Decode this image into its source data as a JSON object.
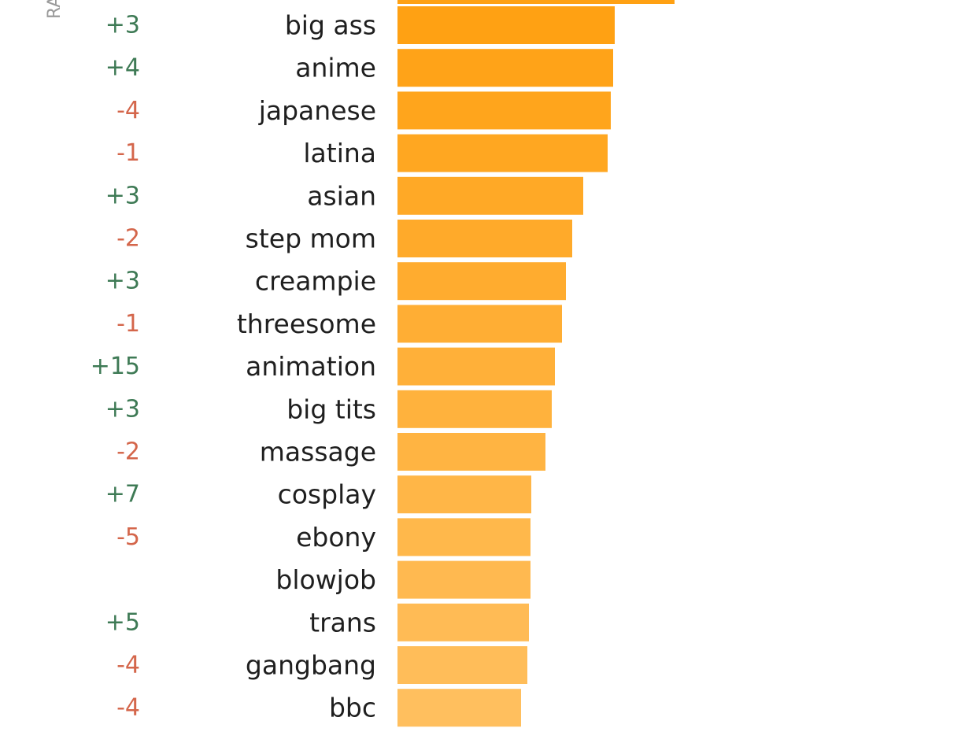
{
  "chart_data": {
    "type": "bar",
    "orientation": "horizontal",
    "rank_axis_label": "RA",
    "colors": {
      "bar_start": "#FFA113",
      "bar_end": "#FFBF5E",
      "positive_change": "#3e7a55",
      "negative_change": "#d4664b"
    },
    "partial_top_bar_value": 352,
    "rows": [
      {
        "label": "big ass",
        "value": 276,
        "rank_change": "+3"
      },
      {
        "label": "anime",
        "value": 274,
        "rank_change": "+4"
      },
      {
        "label": "japanese",
        "value": 271,
        "rank_change": "-4"
      },
      {
        "label": "latina",
        "value": 267,
        "rank_change": "-1"
      },
      {
        "label": "asian",
        "value": 236,
        "rank_change": "+3"
      },
      {
        "label": "step mom",
        "value": 222,
        "rank_change": "-2"
      },
      {
        "label": "creampie",
        "value": 214,
        "rank_change": "+3"
      },
      {
        "label": "threesome",
        "value": 209,
        "rank_change": "-1"
      },
      {
        "label": "animation",
        "value": 200,
        "rank_change": "+15"
      },
      {
        "label": "big tits",
        "value": 196,
        "rank_change": "+3"
      },
      {
        "label": "massage",
        "value": 188,
        "rank_change": "-2"
      },
      {
        "label": "cosplay",
        "value": 170,
        "rank_change": "+7"
      },
      {
        "label": "ebony",
        "value": 169,
        "rank_change": "-5"
      },
      {
        "label": "blowjob",
        "value": 169,
        "rank_change": ""
      },
      {
        "label": "trans",
        "value": 167,
        "rank_change": "+5"
      },
      {
        "label": "gangbang",
        "value": 165,
        "rank_change": "-4"
      },
      {
        "label": "bbc",
        "value": 157,
        "rank_change": "-4"
      }
    ]
  }
}
